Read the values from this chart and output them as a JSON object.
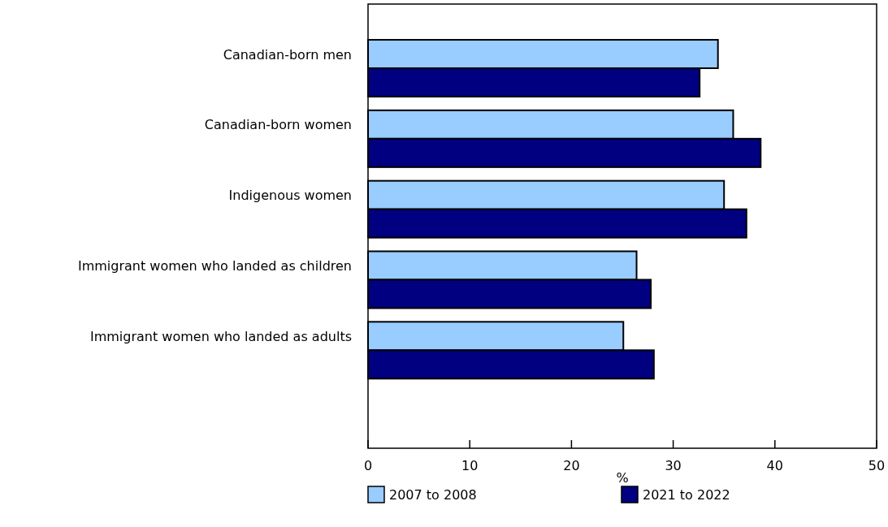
{
  "chart_data": {
    "type": "bar",
    "orientation": "horizontal",
    "xlabel": "%",
    "categories": [
      "Canadian-born men",
      "Canadian-born women",
      "Indigenous women",
      "Immigrant women who landed as children",
      "Immigrant women who landed as adults"
    ],
    "series": [
      {
        "name": "2007 to 2008",
        "color": "#99ccff",
        "values": [
          34.4,
          35.9,
          35.0,
          26.4,
          25.1
        ]
      },
      {
        "name": "2021 to 2022",
        "color": "#000080",
        "values": [
          32.6,
          38.6,
          37.2,
          27.8,
          28.1
        ]
      }
    ],
    "xlim": [
      0,
      50
    ],
    "xticks": [
      0,
      10,
      20,
      30,
      40,
      50
    ],
    "grid": false,
    "legend": "bottom"
  }
}
